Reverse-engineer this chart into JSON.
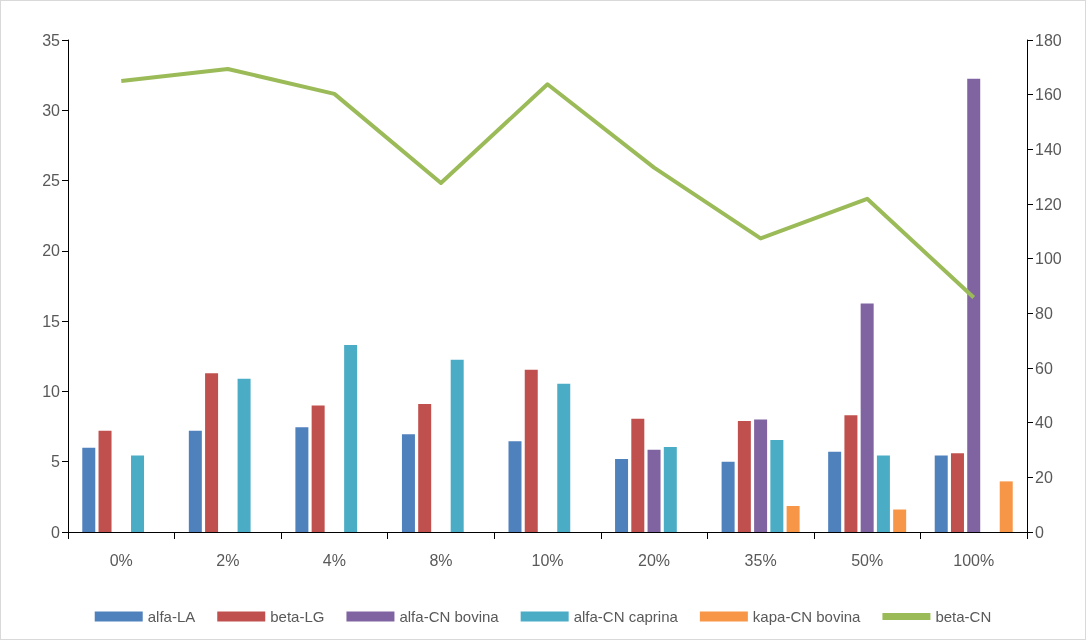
{
  "chart_data": {
    "type": "bar",
    "categories": [
      "0%",
      "2%",
      "4%",
      "8%",
      "10%",
      "20%",
      "35%",
      "50%",
      "100%"
    ],
    "series": [
      {
        "name": "alfa-LA",
        "color": "#4f81bd",
        "values": [
          6.0,
          7.2,
          7.45,
          6.95,
          6.45,
          5.2,
          5.0,
          5.7,
          5.45
        ]
      },
      {
        "name": "beta-LG",
        "color": "#c0504d",
        "values": [
          7.2,
          11.3,
          9.0,
          9.1,
          11.55,
          8.05,
          7.9,
          8.3,
          5.6
        ]
      },
      {
        "name": "alfa-CN bovina",
        "color": "#8064a2",
        "values": [
          null,
          null,
          null,
          null,
          null,
          5.85,
          8.0,
          16.25,
          32.25
        ]
      },
      {
        "name": "alfa-CN caprina",
        "color": "#4bacc6",
        "values": [
          5.45,
          10.9,
          13.3,
          12.25,
          10.55,
          6.05,
          6.55,
          5.45,
          null
        ]
      },
      {
        "name": "kapa-CN bovina",
        "color": "#f79646",
        "values": [
          null,
          null,
          null,
          null,
          null,
          null,
          1.85,
          1.6,
          3.6
        ]
      },
      {
        "name": "beta-CN",
        "type": "line",
        "axis": "y2",
        "color": "#9bbb59",
        "marker": "none",
        "values": [
          165,
          169.4,
          160.3,
          127.7,
          163.8,
          133.3,
          107.4,
          121.9,
          85.8
        ]
      }
    ],
    "ylim": [
      0,
      35
    ],
    "yticks": [
      0,
      5,
      10,
      15,
      20,
      25,
      30,
      35
    ],
    "y2lim": [
      0,
      180
    ],
    "y2ticks": [
      0,
      20,
      40,
      60,
      80,
      100,
      120,
      140,
      160,
      180
    ],
    "grid": false,
    "legend": "bottom"
  }
}
